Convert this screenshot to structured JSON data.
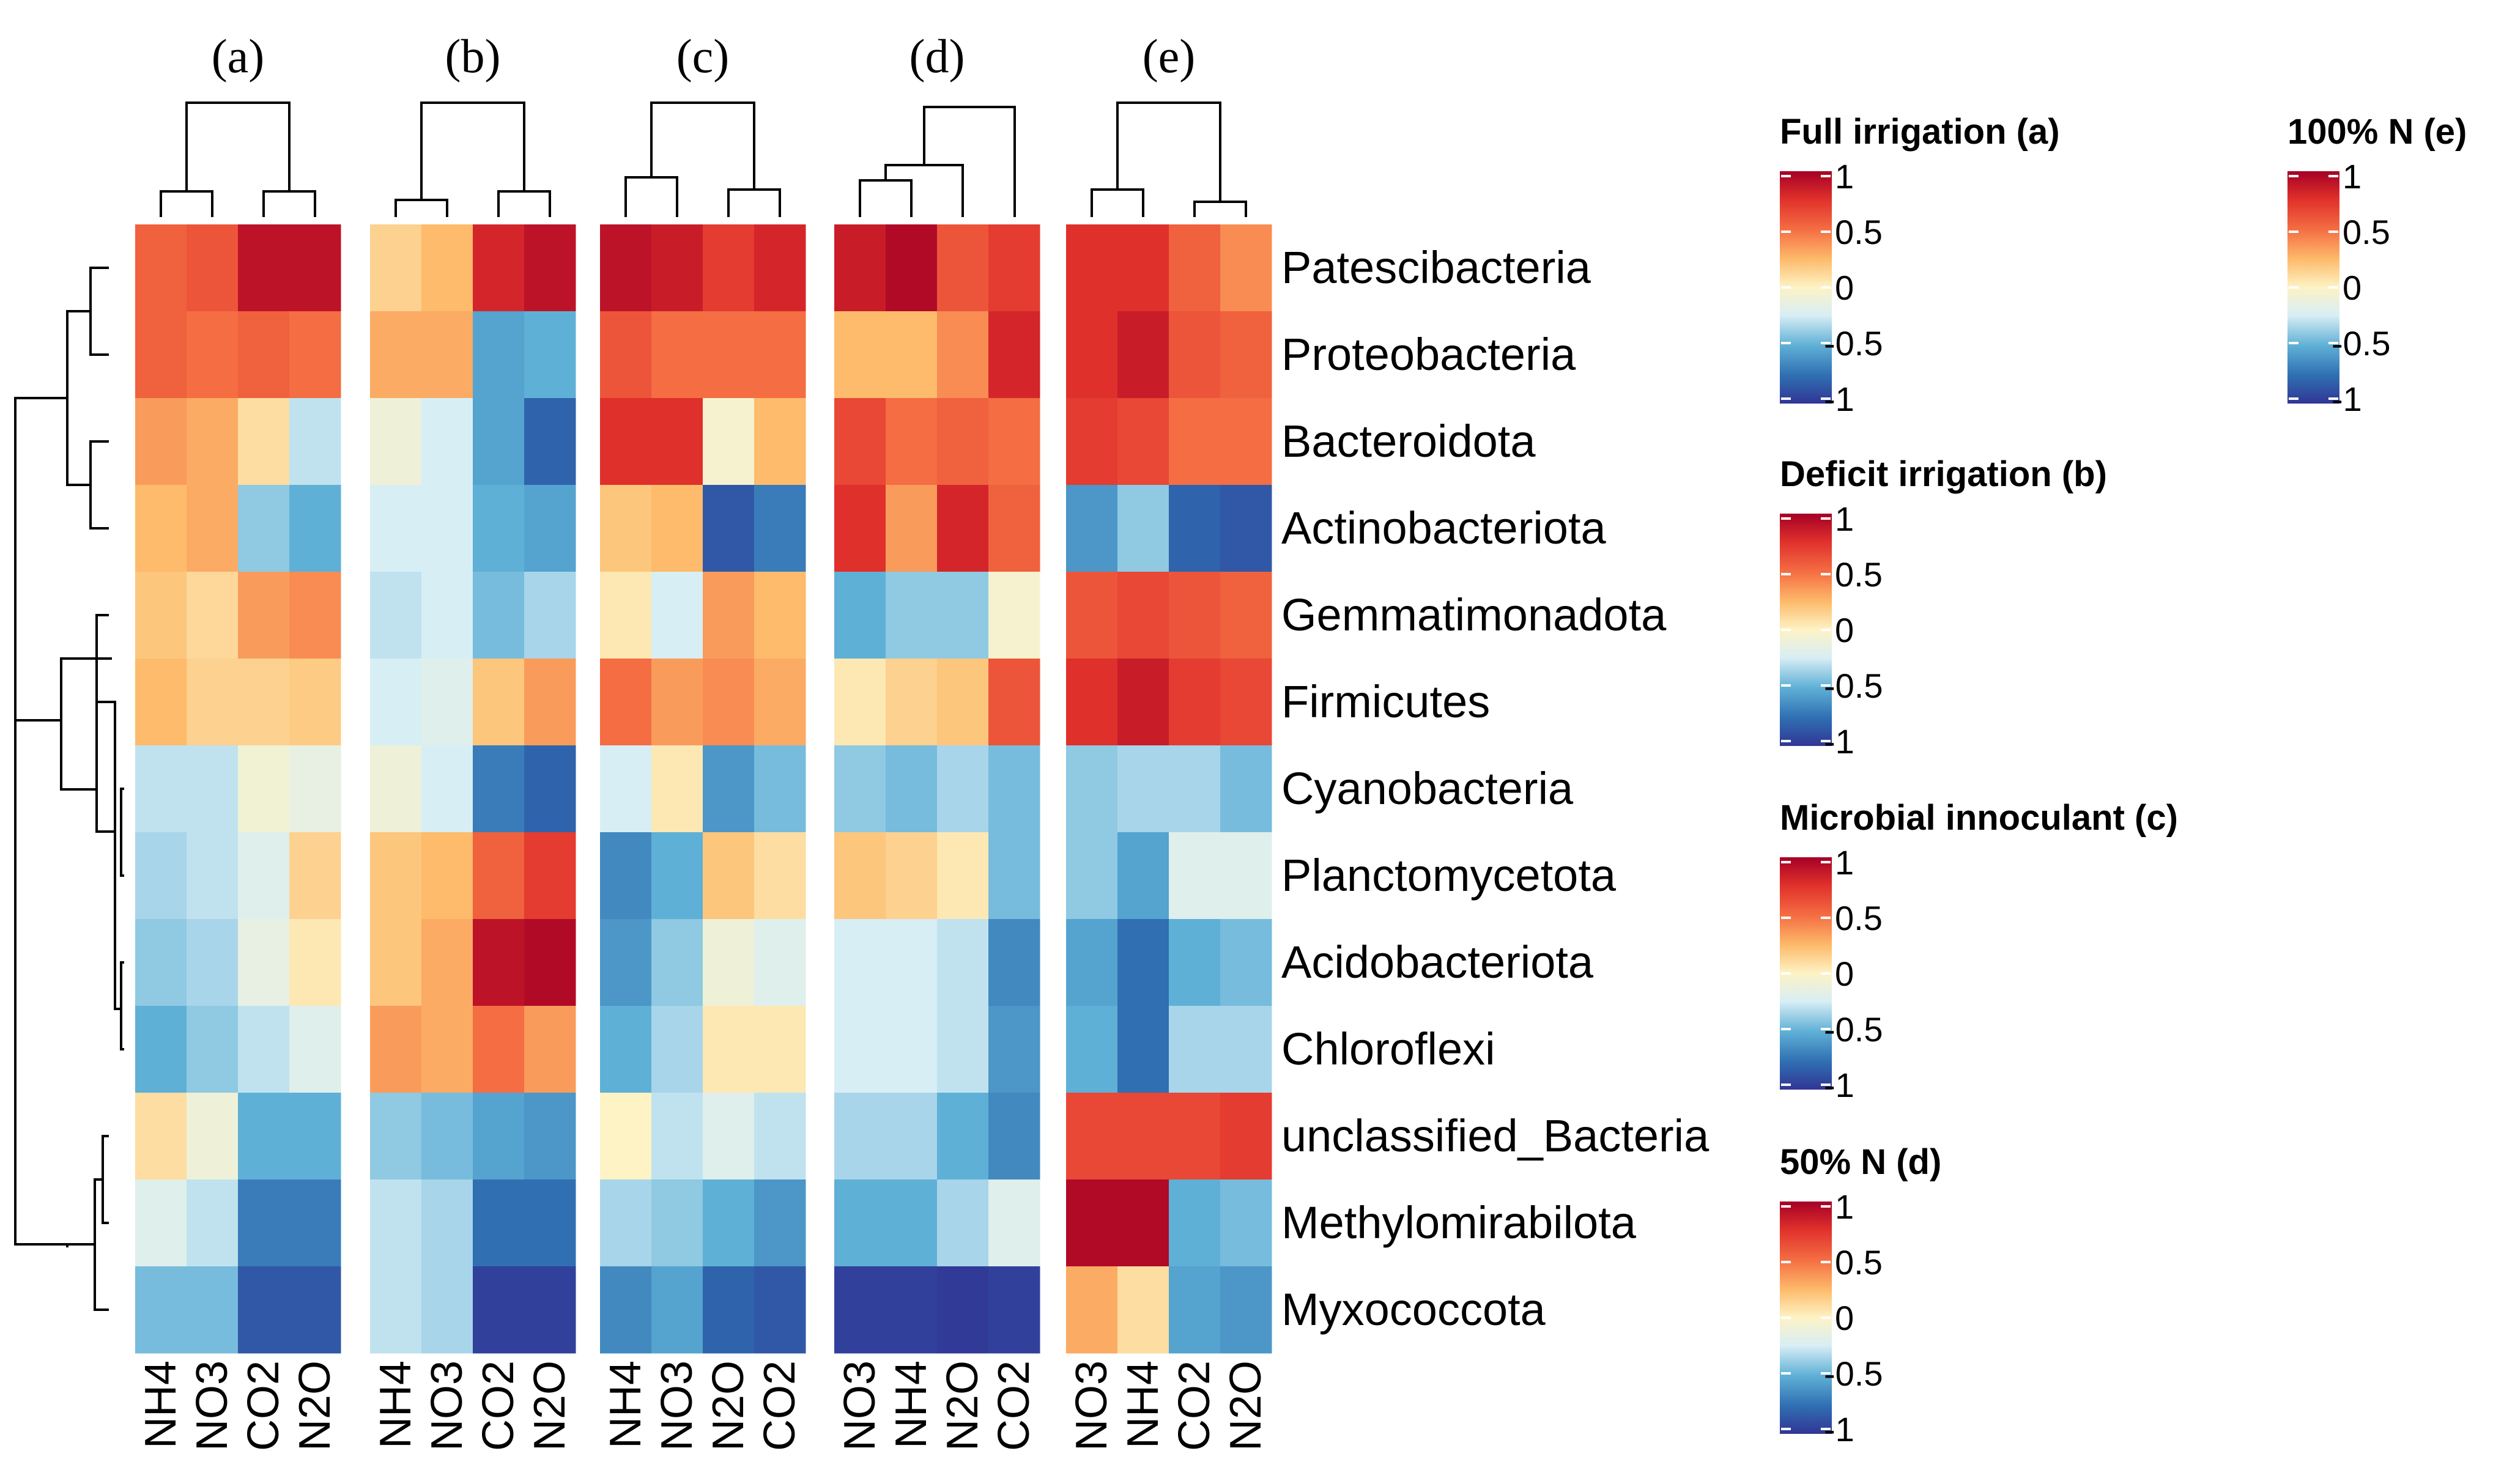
{
  "chart_data": {
    "type": "heatmap",
    "color_scale": {
      "min": -1,
      "max": 1,
      "colors": [
        "#313695",
        "#2f6fb2",
        "#5fb0d6",
        "#d8eef5",
        "#fdf3c5",
        "#fdbb6b",
        "#f46d43",
        "#e0302b",
        "#a50026"
      ]
    },
    "rows": [
      "Patescibacteria",
      "Proteobacteria",
      "Bacteroidota",
      "Actinobacteriota",
      "Gemmatimonadota",
      "Firmicutes",
      "Cyanobacteria",
      "Planctomycetota",
      "Acidobacteriota",
      "Chloroflexi",
      "unclassified_Bacteria",
      "Methylomirabilota",
      "Myxococcota"
    ],
    "panels": [
      {
        "label": "(a)",
        "columns": [
          "NH4",
          "NO3",
          "CO2",
          "N2O"
        ],
        "values": [
          [
            0.55,
            0.6,
            0.9,
            0.9
          ],
          [
            0.55,
            0.5,
            0.55,
            0.5
          ],
          [
            0.35,
            0.3,
            0.1,
            -0.3
          ],
          [
            0.25,
            0.3,
            -0.4,
            -0.5
          ],
          [
            0.2,
            0.12,
            0.35,
            0.4
          ],
          [
            0.25,
            0.15,
            0.15,
            0.18
          ],
          [
            -0.3,
            -0.3,
            -0.08,
            -0.15
          ],
          [
            -0.35,
            -0.3,
            -0.2,
            0.15
          ],
          [
            -0.4,
            -0.35,
            -0.15,
            0.05
          ],
          [
            -0.5,
            -0.4,
            -0.3,
            -0.2
          ],
          [
            0.1,
            -0.1,
            -0.5,
            -0.5
          ],
          [
            -0.2,
            -0.3,
            -0.7,
            -0.7
          ],
          [
            -0.45,
            -0.45,
            -0.85,
            -0.85
          ]
        ]
      },
      {
        "label": "(b)",
        "columns": [
          "NH4",
          "NO3",
          "CO2",
          "N2O"
        ],
        "values": [
          [
            0.15,
            0.25,
            0.8,
            0.9
          ],
          [
            0.3,
            0.3,
            -0.55,
            -0.5
          ],
          [
            -0.1,
            -0.25,
            -0.55,
            -0.8
          ],
          [
            -0.25,
            -0.25,
            -0.5,
            -0.55
          ],
          [
            -0.3,
            -0.25,
            -0.45,
            -0.35
          ],
          [
            -0.25,
            -0.2,
            0.2,
            0.35
          ],
          [
            -0.1,
            -0.25,
            -0.7,
            -0.8
          ],
          [
            0.2,
            0.25,
            0.55,
            0.7
          ],
          [
            0.2,
            0.3,
            0.9,
            0.95
          ],
          [
            0.35,
            0.3,
            0.5,
            0.35
          ],
          [
            -0.4,
            -0.45,
            -0.55,
            -0.6
          ],
          [
            -0.3,
            -0.35,
            -0.75,
            -0.75
          ],
          [
            -0.3,
            -0.35,
            -0.95,
            -0.95
          ]
        ]
      },
      {
        "label": "(c)",
        "columns": [
          "NH4",
          "NO3",
          "N2O",
          "CO2"
        ],
        "values": [
          [
            0.9,
            0.85,
            0.7,
            0.8
          ],
          [
            0.6,
            0.5,
            0.5,
            0.5
          ],
          [
            0.75,
            0.75,
            -0.05,
            0.25
          ],
          [
            0.2,
            0.25,
            -0.85,
            -0.7
          ],
          [
            0.05,
            -0.25,
            0.35,
            0.25
          ],
          [
            0.5,
            0.35,
            0.4,
            0.3
          ],
          [
            -0.25,
            0.05,
            -0.6,
            -0.45
          ],
          [
            -0.65,
            -0.5,
            0.2,
            0.1
          ],
          [
            -0.6,
            -0.4,
            -0.1,
            -0.2
          ],
          [
            -0.5,
            -0.35,
            0.05,
            0.05
          ],
          [
            0.0,
            -0.3,
            -0.2,
            -0.3
          ],
          [
            -0.35,
            -0.4,
            -0.5,
            -0.6
          ],
          [
            -0.65,
            -0.55,
            -0.8,
            -0.85
          ]
        ]
      },
      {
        "label": "(d)",
        "columns": [
          "NO3",
          "NH4",
          "N2O",
          "CO2"
        ],
        "values": [
          [
            0.85,
            0.95,
            0.6,
            0.7
          ],
          [
            0.25,
            0.25,
            0.4,
            0.8
          ],
          [
            0.65,
            0.5,
            0.55,
            0.5
          ],
          [
            0.75,
            0.35,
            0.8,
            0.55
          ],
          [
            -0.5,
            -0.4,
            -0.4,
            -0.05
          ],
          [
            0.05,
            0.15,
            0.2,
            0.6
          ],
          [
            -0.4,
            -0.45,
            -0.35,
            -0.45
          ],
          [
            0.2,
            0.15,
            0.05,
            -0.45
          ],
          [
            -0.25,
            -0.25,
            -0.3,
            -0.65
          ],
          [
            -0.25,
            -0.25,
            -0.3,
            -0.6
          ],
          [
            -0.35,
            -0.35,
            -0.5,
            -0.65
          ],
          [
            -0.5,
            -0.5,
            -0.35,
            -0.2
          ],
          [
            -0.95,
            -0.95,
            -0.98,
            -0.95
          ]
        ]
      },
      {
        "label": "(e)",
        "columns": [
          "NO3",
          "NH4",
          "CO2",
          "N2O"
        ],
        "values": [
          [
            0.75,
            0.75,
            0.55,
            0.4
          ],
          [
            0.75,
            0.85,
            0.6,
            0.55
          ],
          [
            0.7,
            0.65,
            0.5,
            0.5
          ],
          [
            -0.6,
            -0.4,
            -0.8,
            -0.85
          ],
          [
            0.6,
            0.65,
            0.6,
            0.55
          ],
          [
            0.75,
            0.85,
            0.7,
            0.65
          ],
          [
            -0.4,
            -0.35,
            -0.35,
            -0.45
          ],
          [
            -0.4,
            -0.55,
            -0.2,
            -0.2
          ],
          [
            -0.55,
            -0.75,
            -0.5,
            -0.45
          ],
          [
            -0.5,
            -0.75,
            -0.35,
            -0.35
          ],
          [
            0.65,
            0.65,
            0.65,
            0.7
          ],
          [
            0.95,
            0.95,
            -0.5,
            -0.45
          ],
          [
            0.3,
            0.1,
            -0.55,
            -0.6
          ]
        ]
      }
    ],
    "legends": [
      {
        "title": "Full irrigation (a)",
        "ticks": [
          "1",
          "0.5",
          "0",
          "-0.5",
          "-1"
        ]
      },
      {
        "title": "Deficit irrigation (b)",
        "ticks": [
          "1",
          "0.5",
          "0",
          "-0.5",
          "-1"
        ]
      },
      {
        "title": "Microbial innoculant (c)",
        "ticks": [
          "1",
          "0.5",
          "0",
          "-0.5",
          "-1"
        ]
      },
      {
        "title": "50% N (d)",
        "ticks": [
          "1",
          "0.5",
          "0",
          "-0.5",
          "-1"
        ]
      },
      {
        "title": "100% N (e)",
        "ticks": [
          "1",
          "0.5",
          "0",
          "-0.5",
          "-1"
        ]
      }
    ]
  }
}
